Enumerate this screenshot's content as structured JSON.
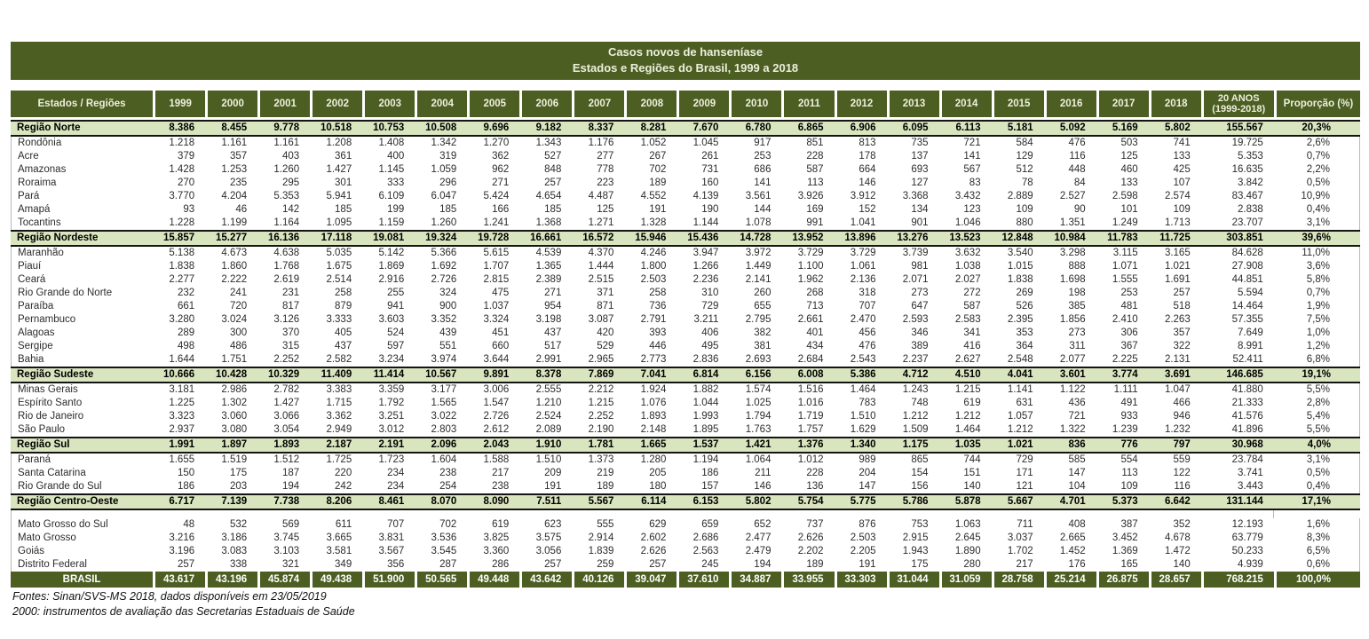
{
  "title": {
    "line1": "Casos novos de hanseníase",
    "line2": "Estados e Regiões do Brasil, 1999 a 2018"
  },
  "footer": {
    "line1": "Fontes: Sinan/SVS-MS 2018, dados disponíveis em 23/05/2019",
    "line2": "2000: instrumentos de avaliação das Secretarias Estaduais de Saúde"
  },
  "colors": {
    "header_green": "#4C5E22",
    "region_row_green": "#D9E5BE",
    "header_text": "#EDEFDD",
    "body_text": "#2D2D2D",
    "border_black": "#141414"
  },
  "chart_data": {
    "type": "table",
    "title": "Casos novos de hanseníase — Estados e Regiões do Brasil, 1999 a 2018",
    "columns": {
      "label": "Estados / Regiões",
      "years": [
        "1999",
        "2000",
        "2001",
        "2002",
        "2003",
        "2004",
        "2005",
        "2006",
        "2007",
        "2008",
        "2009",
        "2010",
        "2011",
        "2012",
        "2013",
        "2014",
        "2015",
        "2016",
        "2017",
        "2018"
      ],
      "total": [
        "20 ANOS",
        "(1999-2018)"
      ],
      "proportion": "Proporção (%)"
    },
    "rows": [
      {
        "label": "Região Norte",
        "type": "region",
        "values": [
          "8.386",
          "8.455",
          "9.778",
          "10.518",
          "10.753",
          "10.508",
          "9.696",
          "9.182",
          "8.337",
          "8.281",
          "7.670",
          "6.780",
          "6.865",
          "6.906",
          "6.095",
          "6.113",
          "5.181",
          "5.092",
          "5.169",
          "5.802",
          "155.567",
          "20,3%"
        ]
      },
      {
        "label": "Rondônia",
        "type": "state",
        "values": [
          "1.218",
          "1.161",
          "1.161",
          "1.208",
          "1.408",
          "1.342",
          "1.270",
          "1.343",
          "1.176",
          "1.052",
          "1.045",
          "917",
          "851",
          "813",
          "735",
          "721",
          "584",
          "476",
          "503",
          "741",
          "19.725",
          "2,6%"
        ]
      },
      {
        "label": "Acre",
        "type": "state",
        "values": [
          "379",
          "357",
          "403",
          "361",
          "400",
          "319",
          "362",
          "527",
          "277",
          "267",
          "261",
          "253",
          "228",
          "178",
          "137",
          "141",
          "129",
          "116",
          "125",
          "133",
          "5.353",
          "0,7%"
        ]
      },
      {
        "label": "Amazonas",
        "type": "state",
        "values": [
          "1.428",
          "1.253",
          "1.260",
          "1.427",
          "1.145",
          "1.059",
          "962",
          "848",
          "778",
          "702",
          "731",
          "686",
          "587",
          "664",
          "693",
          "567",
          "512",
          "448",
          "460",
          "425",
          "16.635",
          "2,2%"
        ]
      },
      {
        "label": "Roraima",
        "type": "state",
        "values": [
          "270",
          "235",
          "295",
          "301",
          "333",
          "296",
          "271",
          "257",
          "223",
          "189",
          "160",
          "141",
          "113",
          "146",
          "127",
          "83",
          "78",
          "84",
          "133",
          "107",
          "3.842",
          "0,5%"
        ]
      },
      {
        "label": "Pará",
        "type": "state",
        "values": [
          "3.770",
          "4.204",
          "5.353",
          "5.941",
          "6.109",
          "6.047",
          "5.424",
          "4.654",
          "4.487",
          "4.552",
          "4.139",
          "3.561",
          "3.926",
          "3.912",
          "3.368",
          "3.432",
          "2.889",
          "2.527",
          "2.598",
          "2.574",
          "83.467",
          "10,9%"
        ]
      },
      {
        "label": "Amapá",
        "type": "state",
        "values": [
          "93",
          "46",
          "142",
          "185",
          "199",
          "185",
          "166",
          "185",
          "125",
          "191",
          "190",
          "144",
          "169",
          "152",
          "134",
          "123",
          "109",
          "90",
          "101",
          "109",
          "2.838",
          "0,4%"
        ]
      },
      {
        "label": "Tocantins",
        "type": "state",
        "values": [
          "1.228",
          "1.199",
          "1.164",
          "1.095",
          "1.159",
          "1.260",
          "1.241",
          "1.368",
          "1.271",
          "1.328",
          "1.144",
          "1.078",
          "991",
          "1.041",
          "901",
          "1.046",
          "880",
          "1.351",
          "1.249",
          "1.713",
          "23.707",
          "3,1%"
        ]
      },
      {
        "label": "Região Nordeste",
        "type": "region",
        "values": [
          "15.857",
          "15.277",
          "16.136",
          "17.118",
          "19.081",
          "19.324",
          "19.728",
          "16.661",
          "16.572",
          "15.946",
          "15.436",
          "14.728",
          "13.952",
          "13.896",
          "13.276",
          "13.523",
          "12.848",
          "10.984",
          "11.783",
          "11.725",
          "303.851",
          "39,6%"
        ]
      },
      {
        "label": "Maranhão",
        "type": "state",
        "values": [
          "5.138",
          "4.673",
          "4.638",
          "5.035",
          "5.142",
          "5.366",
          "5.615",
          "4.539",
          "4.370",
          "4.246",
          "3.947",
          "3.972",
          "3.729",
          "3.729",
          "3.739",
          "3.632",
          "3.540",
          "3.298",
          "3.115",
          "3.165",
          "84.628",
          "11,0%"
        ]
      },
      {
        "label": "Piauí",
        "type": "state",
        "values": [
          "1.838",
          "1.860",
          "1.768",
          "1.675",
          "1.869",
          "1.692",
          "1.707",
          "1.365",
          "1.444",
          "1.800",
          "1.266",
          "1.449",
          "1.100",
          "1.061",
          "981",
          "1.038",
          "1.015",
          "888",
          "1.071",
          "1.021",
          "27.908",
          "3,6%"
        ]
      },
      {
        "label": "Ceará",
        "type": "state",
        "values": [
          "2.277",
          "2.222",
          "2.619",
          "2.514",
          "2.916",
          "2.726",
          "2.815",
          "2.389",
          "2.515",
          "2.503",
          "2.236",
          "2.141",
          "1.962",
          "2.136",
          "2.071",
          "2.027",
          "1.838",
          "1.698",
          "1.555",
          "1.691",
          "44.851",
          "5,8%"
        ]
      },
      {
        "label": "Rio Grande do Norte",
        "type": "state",
        "values": [
          "232",
          "241",
          "231",
          "258",
          "255",
          "324",
          "475",
          "271",
          "371",
          "258",
          "310",
          "260",
          "268",
          "318",
          "273",
          "272",
          "269",
          "198",
          "253",
          "257",
          "5.594",
          "0,7%"
        ]
      },
      {
        "label": "Paraíba",
        "type": "state",
        "values": [
          "661",
          "720",
          "817",
          "879",
          "941",
          "900",
          "1.037",
          "954",
          "871",
          "736",
          "729",
          "655",
          "713",
          "707",
          "647",
          "587",
          "526",
          "385",
          "481",
          "518",
          "14.464",
          "1,9%"
        ]
      },
      {
        "label": "Pernambuco",
        "type": "state",
        "values": [
          "3.280",
          "3.024",
          "3.126",
          "3.333",
          "3.603",
          "3.352",
          "3.324",
          "3.198",
          "3.087",
          "2.791",
          "3.211",
          "2.795",
          "2.661",
          "2.470",
          "2.593",
          "2.583",
          "2.395",
          "1.856",
          "2.410",
          "2.263",
          "57.355",
          "7,5%"
        ]
      },
      {
        "label": "Alagoas",
        "type": "state",
        "values": [
          "289",
          "300",
          "370",
          "405",
          "524",
          "439",
          "451",
          "437",
          "420",
          "393",
          "406",
          "382",
          "401",
          "456",
          "346",
          "341",
          "353",
          "273",
          "306",
          "357",
          "7.649",
          "1,0%"
        ]
      },
      {
        "label": "Sergipe",
        "type": "state",
        "values": [
          "498",
          "486",
          "315",
          "437",
          "597",
          "551",
          "660",
          "517",
          "529",
          "446",
          "495",
          "381",
          "434",
          "476",
          "389",
          "416",
          "364",
          "311",
          "367",
          "322",
          "8.991",
          "1,2%"
        ]
      },
      {
        "label": "Bahia",
        "type": "state",
        "values": [
          "1.644",
          "1.751",
          "2.252",
          "2.582",
          "3.234",
          "3.974",
          "3.644",
          "2.991",
          "2.965",
          "2.773",
          "2.836",
          "2.693",
          "2.684",
          "2.543",
          "2.237",
          "2.627",
          "2.548",
          "2.077",
          "2.225",
          "2.131",
          "52.411",
          "6,8%"
        ]
      },
      {
        "label": "Região Sudeste",
        "type": "region",
        "values": [
          "10.666",
          "10.428",
          "10.329",
          "11.409",
          "11.414",
          "10.567",
          "9.891",
          "8.378",
          "7.869",
          "7.041",
          "6.814",
          "6.156",
          "6.008",
          "5.386",
          "4.712",
          "4.510",
          "4.041",
          "3.601",
          "3.774",
          "3.691",
          "146.685",
          "19,1%"
        ]
      },
      {
        "label": "Minas Gerais",
        "type": "state",
        "values": [
          "3.181",
          "2.986",
          "2.782",
          "3.383",
          "3.359",
          "3.177",
          "3.006",
          "2.555",
          "2.212",
          "1.924",
          "1.882",
          "1.574",
          "1.516",
          "1.464",
          "1.243",
          "1.215",
          "1.141",
          "1.122",
          "1.111",
          "1.047",
          "41.880",
          "5,5%"
        ]
      },
      {
        "label": "Espírito Santo",
        "type": "state",
        "values": [
          "1.225",
          "1.302",
          "1.427",
          "1.715",
          "1.792",
          "1.565",
          "1.547",
          "1.210",
          "1.215",
          "1.076",
          "1.044",
          "1.025",
          "1.016",
          "783",
          "748",
          "619",
          "631",
          "436",
          "491",
          "466",
          "21.333",
          "2,8%"
        ]
      },
      {
        "label": "Rio de Janeiro",
        "type": "state",
        "values": [
          "3.323",
          "3.060",
          "3.066",
          "3.362",
          "3.251",
          "3.022",
          "2.726",
          "2.524",
          "2.252",
          "1.893",
          "1.993",
          "1.794",
          "1.719",
          "1.510",
          "1.212",
          "1.212",
          "1.057",
          "721",
          "933",
          "946",
          "41.576",
          "5,4%"
        ]
      },
      {
        "label": "São Paulo",
        "type": "state",
        "values": [
          "2.937",
          "3.080",
          "3.054",
          "2.949",
          "3.012",
          "2.803",
          "2.612",
          "2.089",
          "2.190",
          "2.148",
          "1.895",
          "1.763",
          "1.757",
          "1.629",
          "1.509",
          "1.464",
          "1.212",
          "1.322",
          "1.239",
          "1.232",
          "41.896",
          "5,5%"
        ]
      },
      {
        "label": "Região Sul",
        "type": "region",
        "values": [
          "1.991",
          "1.897",
          "1.893",
          "2.187",
          "2.191",
          "2.096",
          "2.043",
          "1.910",
          "1.781",
          "1.665",
          "1.537",
          "1.421",
          "1.376",
          "1.340",
          "1.175",
          "1.035",
          "1.021",
          "836",
          "776",
          "797",
          "30.968",
          "4,0%"
        ]
      },
      {
        "label": "Paraná",
        "type": "state",
        "values": [
          "1.655",
          "1.519",
          "1.512",
          "1.725",
          "1.723",
          "1.604",
          "1.588",
          "1.510",
          "1.373",
          "1.280",
          "1.194",
          "1.064",
          "1.012",
          "989",
          "865",
          "744",
          "729",
          "585",
          "554",
          "559",
          "23.784",
          "3,1%"
        ]
      },
      {
        "label": "Santa Catarina",
        "type": "state",
        "values": [
          "150",
          "175",
          "187",
          "220",
          "234",
          "238",
          "217",
          "209",
          "219",
          "205",
          "186",
          "211",
          "228",
          "204",
          "154",
          "151",
          "171",
          "147",
          "113",
          "122",
          "3.741",
          "0,5%"
        ]
      },
      {
        "label": "Rio Grande do Sul",
        "type": "state",
        "values": [
          "186",
          "203",
          "194",
          "242",
          "234",
          "254",
          "238",
          "191",
          "189",
          "180",
          "157",
          "146",
          "136",
          "147",
          "156",
          "140",
          "121",
          "104",
          "109",
          "116",
          "3.443",
          "0,4%"
        ]
      },
      {
        "label": "Região Centro-Oeste",
        "type": "region",
        "values": [
          "6.717",
          "7.139",
          "7.738",
          "8.206",
          "8.461",
          "8.070",
          "8.090",
          "7.511",
          "5.567",
          "6.114",
          "6.153",
          "5.802",
          "5.754",
          "5.775",
          "5.786",
          "5.878",
          "5.667",
          "4.701",
          "5.373",
          "6.642",
          "131.144",
          "17,1%"
        ]
      },
      {
        "label": "",
        "type": "spacer",
        "values": []
      },
      {
        "label": "Mato Grosso do Sul",
        "type": "state",
        "values": [
          "48",
          "532",
          "569",
          "611",
          "707",
          "702",
          "619",
          "623",
          "555",
          "629",
          "659",
          "652",
          "737",
          "876",
          "753",
          "1.063",
          "711",
          "408",
          "387",
          "352",
          "12.193",
          "1,6%"
        ]
      },
      {
        "label": "Mato Grosso",
        "type": "state",
        "values": [
          "3.216",
          "3.186",
          "3.745",
          "3.665",
          "3.831",
          "3.536",
          "3.825",
          "3.575",
          "2.914",
          "2.602",
          "2.686",
          "2.477",
          "2.626",
          "2.503",
          "2.915",
          "2.645",
          "3.037",
          "2.665",
          "3.452",
          "4.678",
          "63.779",
          "8,3%"
        ]
      },
      {
        "label": "Goiás",
        "type": "state",
        "values": [
          "3.196",
          "3.083",
          "3.103",
          "3.581",
          "3.567",
          "3.545",
          "3.360",
          "3.056",
          "1.839",
          "2.626",
          "2.563",
          "2.479",
          "2.202",
          "2.205",
          "1.943",
          "1.890",
          "1.702",
          "1.452",
          "1.369",
          "1.472",
          "50.233",
          "6,5%"
        ]
      },
      {
        "label": "Distrito Federal",
        "type": "state",
        "values": [
          "257",
          "338",
          "321",
          "349",
          "356",
          "287",
          "286",
          "257",
          "259",
          "257",
          "245",
          "194",
          "189",
          "191",
          "175",
          "280",
          "217",
          "176",
          "165",
          "140",
          "4.939",
          "0,6%"
        ]
      },
      {
        "label": "BRASIL",
        "type": "total",
        "values": [
          "43.617",
          "43.196",
          "45.874",
          "49.438",
          "51.900",
          "50.565",
          "49.448",
          "43.642",
          "40.126",
          "39.047",
          "37.610",
          "34.887",
          "33.955",
          "33.303",
          "31.044",
          "31.059",
          "28.758",
          "25.214",
          "26.875",
          "28.657",
          "768.215",
          "100,0%"
        ]
      }
    ]
  }
}
